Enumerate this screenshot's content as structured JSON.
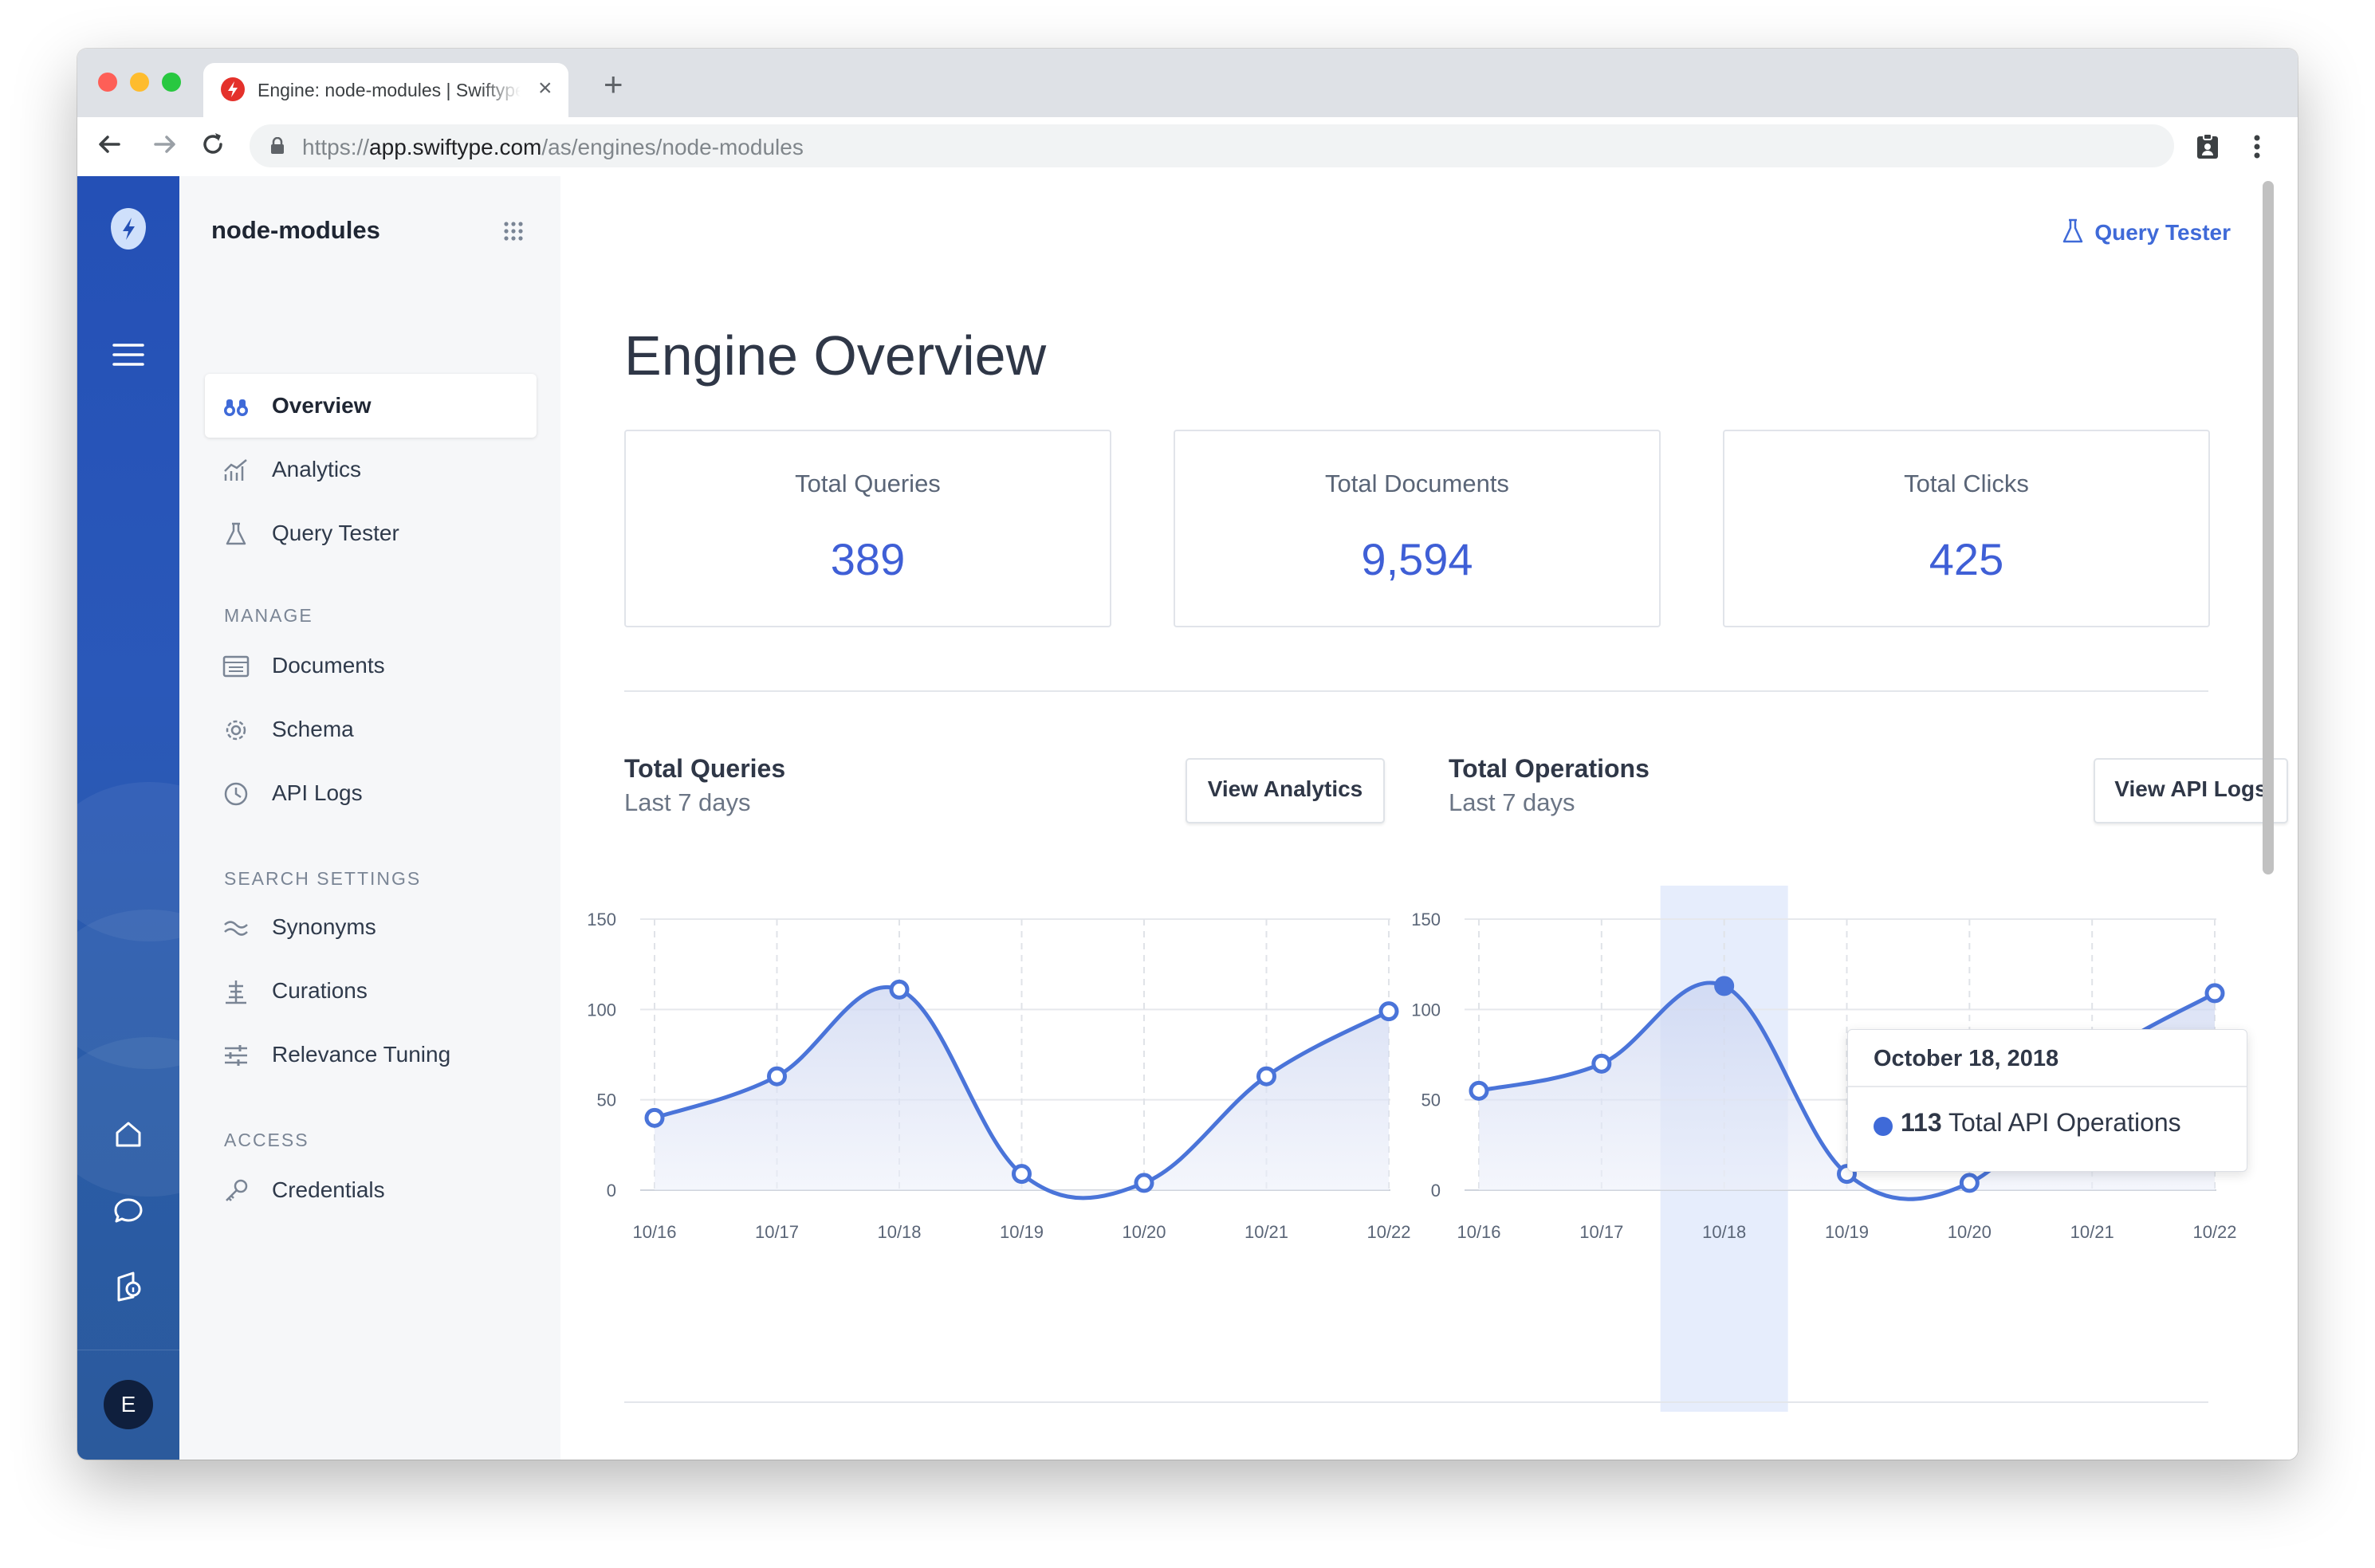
{
  "browser": {
    "tab_title": "Engine: node-modules | Swiftype",
    "url_scheme": "https://",
    "url_host": "app.swiftype.com",
    "url_path": "/as/engines/node-modules"
  },
  "rail": {
    "avatar_initial": "E"
  },
  "sidebar": {
    "engine_name": "node-modules",
    "items": [
      {
        "label": "Overview",
        "icon": "binoculars-icon",
        "active": true
      },
      {
        "label": "Analytics",
        "icon": "analytics-icon"
      },
      {
        "label": "Query Tester",
        "icon": "flask-icon"
      }
    ],
    "manage_heading": "MANAGE",
    "manage_items": [
      {
        "label": "Documents",
        "icon": "documents-icon"
      },
      {
        "label": "Schema",
        "icon": "gear-icon"
      },
      {
        "label": "API Logs",
        "icon": "clock-icon"
      }
    ],
    "search_heading": "SEARCH SETTINGS",
    "search_items": [
      {
        "label": "Synonyms",
        "icon": "synonyms-icon"
      },
      {
        "label": "Curations",
        "icon": "curations-icon"
      },
      {
        "label": "Relevance Tuning",
        "icon": "sliders-icon"
      }
    ],
    "access_heading": "ACCESS",
    "access_items": [
      {
        "label": "Credentials",
        "icon": "key-icon"
      }
    ]
  },
  "header": {
    "query_tester_link": "Query Tester"
  },
  "main": {
    "title": "Engine Overview",
    "stats": [
      {
        "label": "Total Queries",
        "value": "389"
      },
      {
        "label": "Total Documents",
        "value": "9,594"
      },
      {
        "label": "Total Clicks",
        "value": "425"
      }
    ],
    "queries_panel": {
      "title": "Total Queries",
      "subtitle": "Last 7 days",
      "button": "View Analytics"
    },
    "operations_panel": {
      "title": "Total Operations",
      "subtitle": "Last 7 days",
      "button": "View API Logs"
    },
    "tooltip": {
      "date": "October 18, 2018",
      "value": "113",
      "label": "Total API Operations"
    }
  },
  "colors": {
    "accent": "#3f6ad8",
    "line": "#4a74d9",
    "rail": "#2450b6"
  },
  "chart_data": [
    {
      "type": "area",
      "title": "Total Queries",
      "subtitle": "Last 7 days",
      "categories": [
        "10/16",
        "10/17",
        "10/18",
        "10/19",
        "10/20",
        "10/21",
        "10/22"
      ],
      "values": [
        40,
        63,
        111,
        9,
        4,
        63,
        99
      ],
      "ylim": [
        0,
        150
      ],
      "yticks": [
        0,
        50,
        100,
        150
      ],
      "grid": true
    },
    {
      "type": "area",
      "title": "Total Operations",
      "subtitle": "Last 7 days",
      "categories": [
        "10/16",
        "10/17",
        "10/18",
        "10/19",
        "10/20",
        "10/21",
        "10/22"
      ],
      "values": [
        55,
        70,
        113,
        9,
        4,
        70,
        109
      ],
      "ylim": [
        0,
        150
      ],
      "yticks": [
        0,
        50,
        100,
        150
      ],
      "grid": true,
      "highlight_index": 2
    }
  ]
}
